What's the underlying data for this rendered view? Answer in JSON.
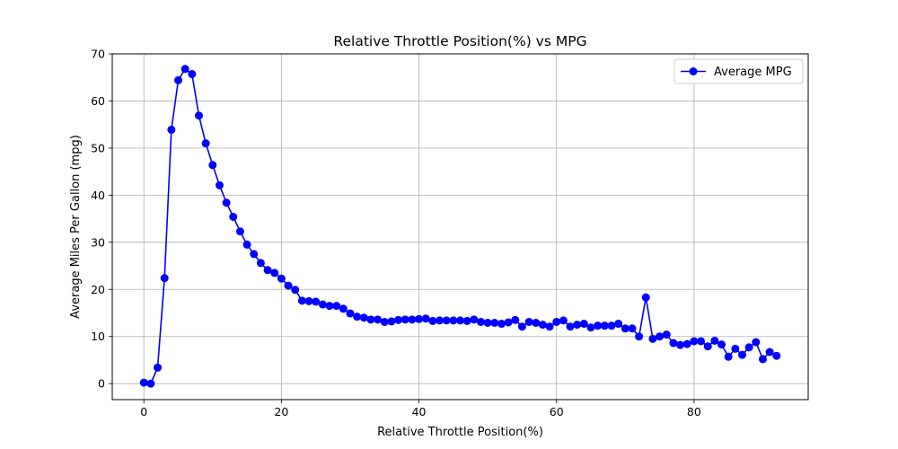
{
  "chart_data": {
    "type": "line",
    "title": "Relative Throttle Position(%) vs MPG",
    "xlabel": "Relative Throttle Position(%)",
    "ylabel": "Average Miles Per Gallon (mpg)",
    "xlim": [
      -4.6,
      96.6
    ],
    "ylim": [
      -3.4,
      70
    ],
    "xticks": [
      0,
      20,
      40,
      60,
      80
    ],
    "yticks": [
      0,
      10,
      20,
      30,
      40,
      50,
      60,
      70
    ],
    "grid": true,
    "legend_position": "top-right",
    "series": [
      {
        "name": "Average MPG",
        "color": "#0000ff",
        "marker": "circle",
        "x": [
          0,
          1,
          2,
          3,
          4,
          5,
          6,
          7,
          8,
          9,
          10,
          11,
          12,
          13,
          14,
          15,
          16,
          17,
          18,
          19,
          20,
          21,
          22,
          23,
          24,
          25,
          26,
          27,
          28,
          29,
          30,
          31,
          32,
          33,
          34,
          35,
          36,
          37,
          38,
          39,
          40,
          41,
          42,
          43,
          44,
          45,
          46,
          47,
          48,
          49,
          50,
          51,
          52,
          53,
          54,
          55,
          56,
          57,
          58,
          59,
          60,
          61,
          62,
          63,
          64,
          65,
          66,
          67,
          68,
          69,
          70,
          71,
          72,
          73,
          74,
          75,
          76,
          77,
          78,
          79,
          80,
          81,
          82,
          83,
          84,
          85,
          86,
          87,
          88,
          89,
          90,
          91,
          92
        ],
        "y": [
          0.2,
          0.0,
          3.4,
          22.4,
          53.9,
          64.4,
          66.8,
          65.7,
          56.9,
          51.0,
          46.4,
          42.1,
          38.4,
          35.4,
          32.3,
          29.5,
          27.5,
          25.6,
          24.1,
          23.5,
          22.3,
          20.8,
          19.9,
          17.6,
          17.5,
          17.4,
          16.8,
          16.5,
          16.5,
          15.9,
          14.9,
          14.2,
          14.0,
          13.6,
          13.6,
          13.1,
          13.2,
          13.5,
          13.6,
          13.6,
          13.7,
          13.8,
          13.3,
          13.4,
          13.4,
          13.4,
          13.4,
          13.3,
          13.6,
          13.1,
          12.9,
          12.9,
          12.7,
          13.0,
          13.5,
          12.1,
          13.1,
          12.9,
          12.5,
          12.1,
          13.1,
          13.4,
          12.1,
          12.5,
          12.7,
          11.9,
          12.3,
          12.3,
          12.3,
          12.7,
          11.7,
          11.7,
          10.0,
          18.3,
          9.5,
          10.0,
          10.4,
          8.6,
          8.2,
          8.4,
          9.0,
          9.0,
          7.9,
          9.1,
          8.3,
          5.7,
          7.4,
          6.1,
          7.7,
          8.8,
          5.2,
          6.7,
          5.9
        ]
      }
    ]
  }
}
